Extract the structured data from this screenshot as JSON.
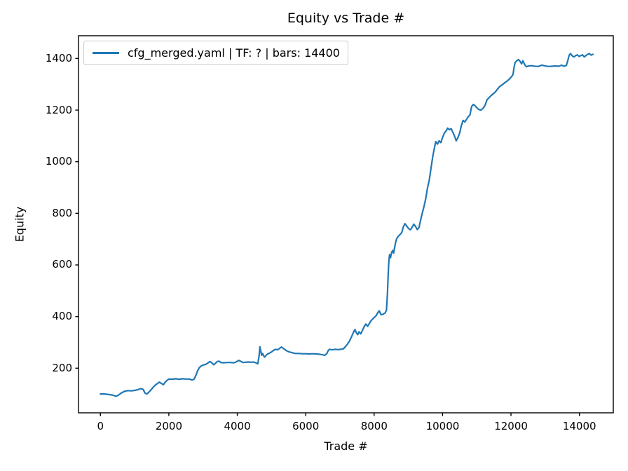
{
  "figure": {
    "background": "#ffffff",
    "text_color": "#000000"
  },
  "chart_data": {
    "type": "line",
    "title": "Equity vs Trade #",
    "xlabel": "Trade #",
    "ylabel": "Equity",
    "grid": false,
    "line_color": "#1f77b4",
    "axis_color": "#000000",
    "legend": {
      "position": "upper left",
      "entries": [
        {
          "label": "cfg_merged.yaml | TF: ? | bars: 14400",
          "color": "#1f77b4"
        }
      ]
    },
    "x_ticks": [
      0,
      2000,
      4000,
      6000,
      8000,
      10000,
      12000,
      14000
    ],
    "y_ticks": [
      200,
      400,
      600,
      800,
      1000,
      1200,
      1400
    ],
    "xlim": [
      -641,
      14990
    ],
    "ylim": [
      27,
      1488
    ],
    "series": [
      {
        "name": "cfg_merged.yaml | TF: ? | bars: 14400",
        "points": [
          [
            0,
            100
          ],
          [
            120,
            100
          ],
          [
            250,
            98
          ],
          [
            350,
            96
          ],
          [
            450,
            91
          ],
          [
            520,
            95
          ],
          [
            600,
            103
          ],
          [
            700,
            110
          ],
          [
            800,
            113
          ],
          [
            900,
            112
          ],
          [
            1000,
            114
          ],
          [
            1100,
            117
          ],
          [
            1180,
            121
          ],
          [
            1250,
            118
          ],
          [
            1300,
            104
          ],
          [
            1360,
            100
          ],
          [
            1420,
            108
          ],
          [
            1480,
            116
          ],
          [
            1540,
            126
          ],
          [
            1600,
            134
          ],
          [
            1660,
            140
          ],
          [
            1720,
            146
          ],
          [
            1780,
            141
          ],
          [
            1840,
            136
          ],
          [
            1900,
            147
          ],
          [
            1950,
            153
          ],
          [
            2000,
            158
          ],
          [
            2100,
            157
          ],
          [
            2200,
            159
          ],
          [
            2300,
            157
          ],
          [
            2400,
            159
          ],
          [
            2500,
            158
          ],
          [
            2600,
            158
          ],
          [
            2680,
            154
          ],
          [
            2740,
            158
          ],
          [
            2790,
            172
          ],
          [
            2840,
            190
          ],
          [
            2890,
            202
          ],
          [
            2940,
            208
          ],
          [
            3000,
            212
          ],
          [
            3080,
            215
          ],
          [
            3140,
            220
          ],
          [
            3200,
            226
          ],
          [
            3260,
            220
          ],
          [
            3310,
            213
          ],
          [
            3360,
            219
          ],
          [
            3420,
            226
          ],
          [
            3470,
            227
          ],
          [
            3520,
            222
          ],
          [
            3600,
            221
          ],
          [
            3700,
            222
          ],
          [
            3800,
            222
          ],
          [
            3900,
            221
          ],
          [
            3980,
            225
          ],
          [
            4040,
            230
          ],
          [
            4100,
            227
          ],
          [
            4160,
            222
          ],
          [
            4240,
            223
          ],
          [
            4320,
            224
          ],
          [
            4400,
            223
          ],
          [
            4480,
            224
          ],
          [
            4540,
            221
          ],
          [
            4600,
            217
          ],
          [
            4640,
            250
          ],
          [
            4660,
            283
          ],
          [
            4690,
            265
          ],
          [
            4710,
            250
          ],
          [
            4740,
            257
          ],
          [
            4770,
            248
          ],
          [
            4800,
            243
          ],
          [
            4850,
            251
          ],
          [
            4900,
            256
          ],
          [
            4950,
            259
          ],
          [
            5000,
            263
          ],
          [
            5060,
            269
          ],
          [
            5120,
            273
          ],
          [
            5180,
            271
          ],
          [
            5240,
            277
          ],
          [
            5290,
            282
          ],
          [
            5340,
            277
          ],
          [
            5400,
            271
          ],
          [
            5460,
            266
          ],
          [
            5520,
            263
          ],
          [
            5600,
            260
          ],
          [
            5700,
            257
          ],
          [
            5800,
            257
          ],
          [
            5900,
            256
          ],
          [
            6000,
            256
          ],
          [
            6100,
            255
          ],
          [
            6200,
            256
          ],
          [
            6300,
            255
          ],
          [
            6400,
            254
          ],
          [
            6480,
            252
          ],
          [
            6560,
            250
          ],
          [
            6620,
            257
          ],
          [
            6660,
            269
          ],
          [
            6700,
            273
          ],
          [
            6780,
            271
          ],
          [
            6860,
            273
          ],
          [
            6940,
            272
          ],
          [
            7020,
            273
          ],
          [
            7100,
            275
          ],
          [
            7160,
            283
          ],
          [
            7220,
            293
          ],
          [
            7280,
            305
          ],
          [
            7340,
            322
          ],
          [
            7400,
            340
          ],
          [
            7440,
            350
          ],
          [
            7480,
            337
          ],
          [
            7520,
            330
          ],
          [
            7560,
            341
          ],
          [
            7610,
            333
          ],
          [
            7660,
            347
          ],
          [
            7710,
            361
          ],
          [
            7760,
            371
          ],
          [
            7810,
            362
          ],
          [
            7860,
            373
          ],
          [
            7910,
            384
          ],
          [
            7960,
            391
          ],
          [
            8010,
            397
          ],
          [
            8060,
            404
          ],
          [
            8110,
            416
          ],
          [
            8150,
            422
          ],
          [
            8200,
            407
          ],
          [
            8260,
            409
          ],
          [
            8320,
            414
          ],
          [
            8360,
            425
          ],
          [
            8390,
            490
          ],
          [
            8410,
            560
          ],
          [
            8430,
            615
          ],
          [
            8450,
            640
          ],
          [
            8480,
            628
          ],
          [
            8510,
            648
          ],
          [
            8540,
            656
          ],
          [
            8570,
            646
          ],
          [
            8600,
            668
          ],
          [
            8630,
            688
          ],
          [
            8660,
            702
          ],
          [
            8710,
            712
          ],
          [
            8760,
            718
          ],
          [
            8810,
            726
          ],
          [
            8850,
            746
          ],
          [
            8900,
            760
          ],
          [
            8950,
            751
          ],
          [
            9000,
            742
          ],
          [
            9060,
            736
          ],
          [
            9110,
            746
          ],
          [
            9160,
            758
          ],
          [
            9210,
            749
          ],
          [
            9260,
            737
          ],
          [
            9310,
            744
          ],
          [
            9360,
            775
          ],
          [
            9410,
            802
          ],
          [
            9460,
            828
          ],
          [
            9510,
            858
          ],
          [
            9560,
            898
          ],
          [
            9610,
            928
          ],
          [
            9660,
            972
          ],
          [
            9710,
            1018
          ],
          [
            9760,
            1052
          ],
          [
            9800,
            1078
          ],
          [
            9850,
            1068
          ],
          [
            9900,
            1081
          ],
          [
            9950,
            1074
          ],
          [
            10000,
            1094
          ],
          [
            10050,
            1110
          ],
          [
            10100,
            1119
          ],
          [
            10150,
            1130
          ],
          [
            10200,
            1124
          ],
          [
            10250,
            1128
          ],
          [
            10300,
            1114
          ],
          [
            10350,
            1099
          ],
          [
            10400,
            1081
          ],
          [
            10450,
            1094
          ],
          [
            10500,
            1111
          ],
          [
            10550,
            1140
          ],
          [
            10600,
            1160
          ],
          [
            10650,
            1154
          ],
          [
            10700,
            1164
          ],
          [
            10750,
            1174
          ],
          [
            10800,
            1181
          ],
          [
            10850,
            1214
          ],
          [
            10900,
            1222
          ],
          [
            10950,
            1217
          ],
          [
            11000,
            1209
          ],
          [
            11060,
            1202
          ],
          [
            11120,
            1200
          ],
          [
            11180,
            1206
          ],
          [
            11240,
            1218
          ],
          [
            11300,
            1240
          ],
          [
            11360,
            1248
          ],
          [
            11420,
            1256
          ],
          [
            11480,
            1263
          ],
          [
            11540,
            1270
          ],
          [
            11600,
            1280
          ],
          [
            11660,
            1290
          ],
          [
            11720,
            1296
          ],
          [
            11780,
            1302
          ],
          [
            11840,
            1308
          ],
          [
            11900,
            1314
          ],
          [
            11960,
            1321
          ],
          [
            12020,
            1330
          ],
          [
            12060,
            1338
          ],
          [
            12090,
            1365
          ],
          [
            12120,
            1384
          ],
          [
            12170,
            1391
          ],
          [
            12220,
            1396
          ],
          [
            12270,
            1388
          ],
          [
            12310,
            1379
          ],
          [
            12350,
            1391
          ],
          [
            12400,
            1376
          ],
          [
            12450,
            1368
          ],
          [
            12520,
            1371
          ],
          [
            12600,
            1372
          ],
          [
            12700,
            1370
          ],
          [
            12800,
            1369
          ],
          [
            12900,
            1374
          ],
          [
            13000,
            1371
          ],
          [
            13100,
            1369
          ],
          [
            13200,
            1370
          ],
          [
            13300,
            1371
          ],
          [
            13400,
            1370
          ],
          [
            13480,
            1374
          ],
          [
            13550,
            1370
          ],
          [
            13620,
            1373
          ],
          [
            13660,
            1392
          ],
          [
            13700,
            1412
          ],
          [
            13740,
            1419
          ],
          [
            13790,
            1410
          ],
          [
            13840,
            1406
          ],
          [
            13890,
            1411
          ],
          [
            13940,
            1414
          ],
          [
            13990,
            1408
          ],
          [
            14040,
            1411
          ],
          [
            14090,
            1414
          ],
          [
            14140,
            1406
          ],
          [
            14190,
            1411
          ],
          [
            14240,
            1416
          ],
          [
            14290,
            1419
          ],
          [
            14340,
            1413
          ],
          [
            14400,
            1416
          ]
        ]
      }
    ]
  }
}
